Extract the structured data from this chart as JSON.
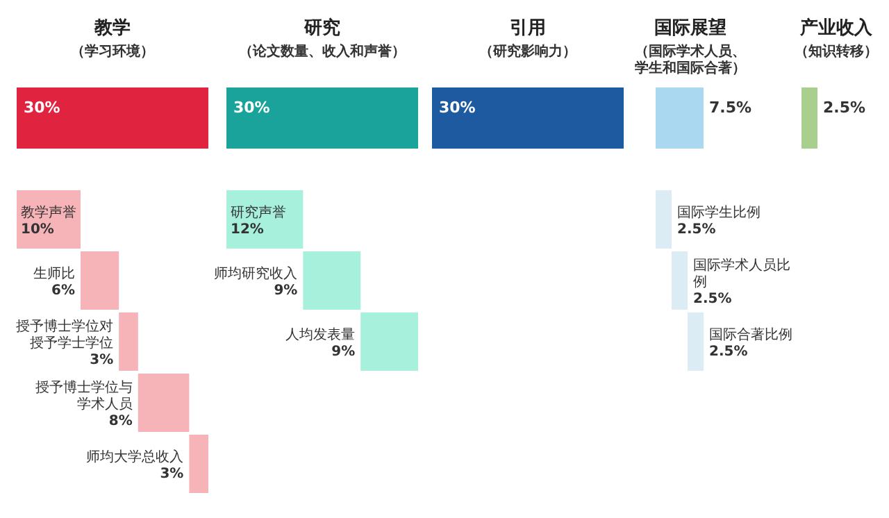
{
  "chart_data": [
    {
      "type": "other",
      "title": "教学",
      "subtitle": "（学习环境）",
      "categories": [
        null,
        "教学声誉",
        "生师比",
        "授予博士学位对授予学士学位",
        "授予博士学位与学术人员",
        "师均大学总收入"
      ],
      "values": [
        30,
        10,
        6,
        3,
        8,
        3
      ],
      "value_labels": [
        "30%",
        "10%",
        "6%",
        "3%",
        "8%",
        "3%"
      ],
      "colors": [
        "#e0243f",
        "#f6b3b8",
        "#f6b3b8",
        "#f6b3b8",
        "#f6b3b8",
        "#f6b3b8"
      ]
    },
    {
      "type": "other",
      "title": "研究",
      "subtitle": "（论文数量、收入和声誉）",
      "categories": [
        null,
        "研究声誉",
        "师均研究收入",
        "人均发表量"
      ],
      "values": [
        30,
        12,
        9,
        9
      ],
      "value_labels": [
        "30%",
        "12%",
        "9%",
        "9%"
      ],
      "colors": [
        "#1aa39a",
        "#a6f0dc",
        "#a6f0dc",
        "#a6f0dc"
      ]
    },
    {
      "type": "other",
      "title": "引用",
      "subtitle": "（研究影响力）",
      "categories": [
        null
      ],
      "values": [
        30
      ],
      "value_labels": [
        "30%"
      ],
      "colors": [
        "#1e5aa0"
      ]
    },
    {
      "type": "other",
      "title": "国际展望",
      "subtitle": "（国际学术人员、学生和国际合著）",
      "categories": [
        null,
        "国际学生比例",
        "国际学术人员比例",
        "国际合著比例"
      ],
      "values": [
        7.5,
        2.5,
        2.5,
        2.5
      ],
      "value_labels": [
        "7.5%",
        "2.5%",
        "2.5%",
        "2.5%"
      ],
      "colors": [
        "#a9d8f0",
        "#dcecf5",
        "#dcecf5",
        "#dcecf5"
      ]
    },
    {
      "type": "other",
      "title": "产业收入",
      "subtitle": "（知识转移）",
      "categories": [
        null
      ],
      "values": [
        2.5
      ],
      "value_labels": [
        "2.5%"
      ],
      "colors": [
        "#a8cf8e"
      ]
    }
  ]
}
